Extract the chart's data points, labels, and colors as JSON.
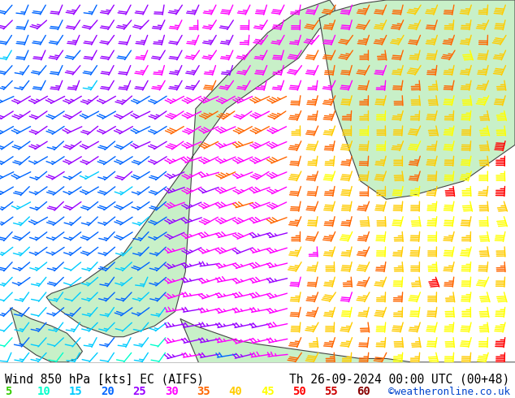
{
  "title_left": "Wind 850 hPa [kts] EC (AIFS)",
  "title_right": "Th 26-09-2024 00:00 UTC (00+48)",
  "credit": "©weatheronline.co.uk",
  "legend_values": [
    "5",
    "10",
    "15",
    "20",
    "25",
    "30",
    "35",
    "40",
    "45",
    "50",
    "55",
    "60"
  ],
  "legend_colors": [
    "#33cc00",
    "#00ffcc",
    "#00ccff",
    "#0066ff",
    "#9900ff",
    "#ff00ff",
    "#ff6600",
    "#ffcc00",
    "#ffff00",
    "#ff0000",
    "#cc0000",
    "#880000"
  ],
  "bg_color": "#ffffff",
  "text_color": "#000000",
  "land_color": "#c8f0c8",
  "sea_color": "#e8e8f0",
  "font_size_title": 10.5,
  "font_size_legend": 10,
  "font_size_credit": 9,
  "figsize": [
    6.34,
    4.9
  ],
  "dpi": 100
}
